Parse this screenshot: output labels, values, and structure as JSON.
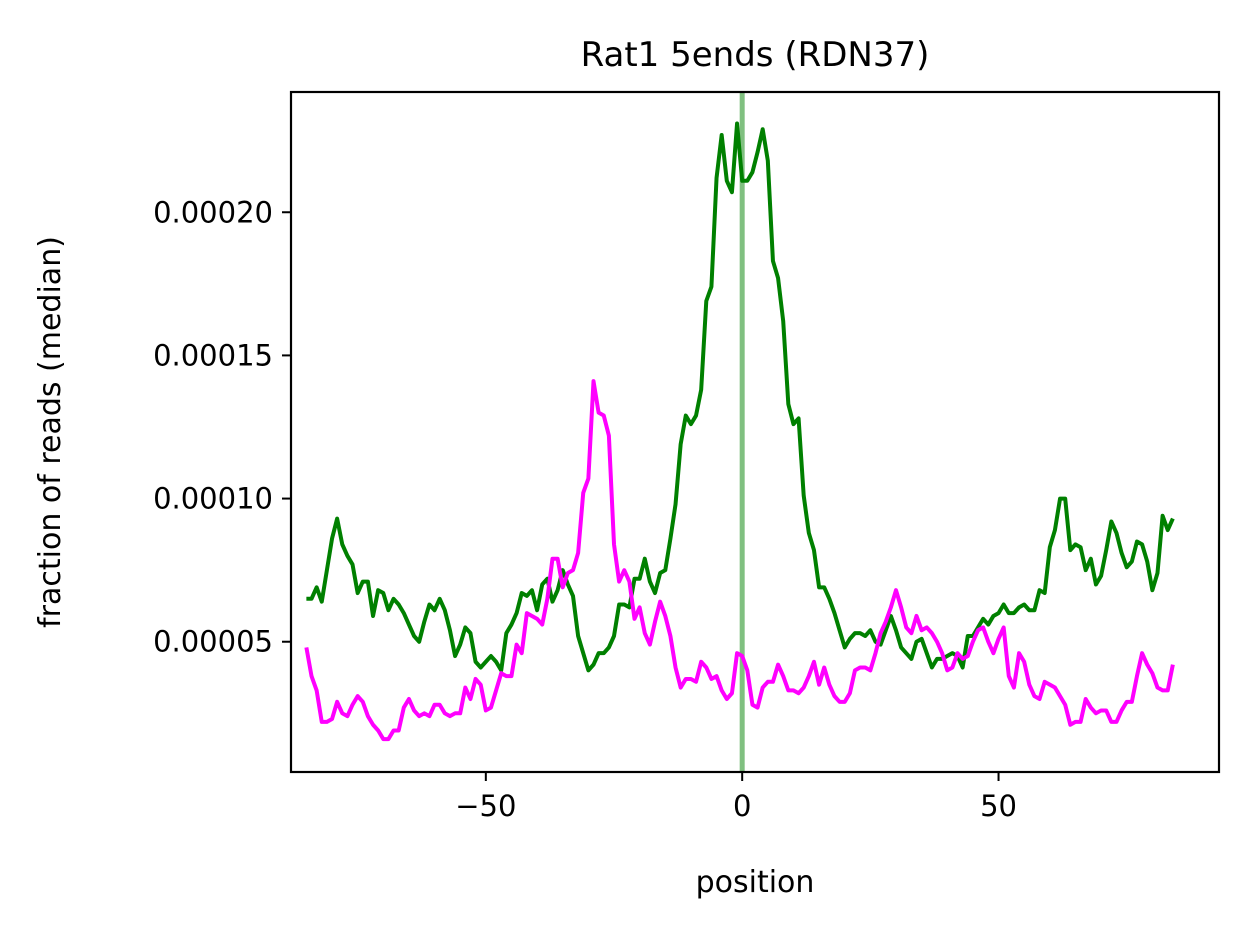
{
  "chart_data": {
    "type": "line",
    "title": "Rat1 5ends (RDN37)",
    "xlabel": "position",
    "ylabel": "fraction of reads (median)",
    "xlim": [
      -88,
      93
    ],
    "ylim": [
      4.5e-06,
      0.000242
    ],
    "xticks": [
      -50,
      0,
      50
    ],
    "xtick_labels": [
      "−50",
      "0",
      "50"
    ],
    "yticks": [
      5e-05,
      0.0001,
      0.00015,
      0.0002
    ],
    "ytick_labels": [
      "0.00005",
      "0.00010",
      "0.00015",
      "0.00020"
    ],
    "grid": false,
    "legend": "none",
    "vline": {
      "x": 0,
      "color": "#80c080"
    },
    "x_start": -85,
    "x_step": 1,
    "series": [
      {
        "color": "#008000",
        "values": [
          6.5e-05,
          6.5e-05,
          6.9e-05,
          6.4e-05,
          7.5e-05,
          8.6e-05,
          9.3e-05,
          8.4e-05,
          8e-05,
          7.7e-05,
          6.7e-05,
          7.1e-05,
          7.1e-05,
          5.9e-05,
          6.8e-05,
          6.7e-05,
          6.1e-05,
          6.5e-05,
          6.3e-05,
          6e-05,
          5.6e-05,
          5.2e-05,
          5e-05,
          5.7e-05,
          6.3e-05,
          6.1e-05,
          6.5e-05,
          6.1e-05,
          5.4e-05,
          4.5e-05,
          4.9e-05,
          5.5e-05,
          5.3e-05,
          4.3e-05,
          4.1e-05,
          4.3e-05,
          4.5e-05,
          4.3e-05,
          4e-05,
          5.3e-05,
          5.6e-05,
          6e-05,
          6.7e-05,
          6.6e-05,
          6.8e-05,
          6.1e-05,
          7e-05,
          7.2e-05,
          6.4e-05,
          6.8e-05,
          7.5e-05,
          7e-05,
          6.6e-05,
          5.2e-05,
          4.6e-05,
          4e-05,
          4.2e-05,
          4.6e-05,
          4.6e-05,
          4.8e-05,
          5.2e-05,
          6.3e-05,
          6.3e-05,
          6.2e-05,
          7.2e-05,
          7.2e-05,
          7.9e-05,
          7.1e-05,
          6.7e-05,
          7.4e-05,
          7.5e-05,
          8.6e-05,
          9.8e-05,
          0.000119,
          0.000129,
          0.000126,
          0.000129,
          0.000138,
          0.000169,
          0.000174,
          0.000212,
          0.000227,
          0.000211,
          0.000207,
          0.000231,
          0.000211,
          0.000211,
          0.000214,
          0.000221,
          0.000229,
          0.000218,
          0.000183,
          0.000177,
          0.000162,
          0.000133,
          0.000126,
          0.000128,
          0.000101,
          8.8e-05,
          8.2e-05,
          6.9e-05,
          6.9e-05,
          6.5e-05,
          6e-05,
          5.4e-05,
          4.8e-05,
          5.1e-05,
          5.3e-05,
          5.3e-05,
          5.2e-05,
          5.4e-05,
          5e-05,
          4.9e-05,
          5.4e-05,
          5.9e-05,
          5.4e-05,
          4.8e-05,
          4.6e-05,
          4.4e-05,
          5e-05,
          5.1e-05,
          4.6e-05,
          4.1e-05,
          4.4e-05,
          4.4e-05,
          4.5e-05,
          4.6e-05,
          4.5e-05,
          4.1e-05,
          5.2e-05,
          5.2e-05,
          5.5e-05,
          5.8e-05,
          5.6e-05,
          5.9e-05,
          6e-05,
          6.3e-05,
          6e-05,
          6e-05,
          6.2e-05,
          6.3e-05,
          6.1e-05,
          6.1e-05,
          6.8e-05,
          6.7e-05,
          8.3e-05,
          8.9e-05,
          0.0001,
          0.0001,
          8.2e-05,
          8.4e-05,
          8.3e-05,
          7.5e-05,
          7.9e-05,
          7e-05,
          7.3e-05,
          8.2e-05,
          9.2e-05,
          8.8e-05,
          8.1e-05,
          7.6e-05,
          7.8e-05,
          8.5e-05,
          8.4e-05,
          7.8e-05,
          6.8e-05,
          7.4e-05,
          9.4e-05,
          8.9e-05,
          9.3e-05
        ]
      },
      {
        "color": "#ff00ff",
        "values": [
          4.8e-05,
          3.8e-05,
          3.3e-05,
          2.2e-05,
          2.2e-05,
          2.3e-05,
          2.9e-05,
          2.5e-05,
          2.4e-05,
          2.8e-05,
          3.1e-05,
          2.9e-05,
          2.4e-05,
          2.1e-05,
          1.9e-05,
          1.6e-05,
          1.6e-05,
          1.9e-05,
          1.9e-05,
          2.7e-05,
          3e-05,
          2.6e-05,
          2.4e-05,
          2.5e-05,
          2.4e-05,
          2.8e-05,
          2.8e-05,
          2.5e-05,
          2.4e-05,
          2.5e-05,
          2.5e-05,
          3.4e-05,
          3e-05,
          3.7e-05,
          3.5e-05,
          2.6e-05,
          2.7e-05,
          3.3e-05,
          3.9e-05,
          3.8e-05,
          3.8e-05,
          4.9e-05,
          4.6e-05,
          6e-05,
          5.9e-05,
          5.8e-05,
          5.6e-05,
          6.5e-05,
          7.9e-05,
          7.9e-05,
          6.9e-05,
          7.4e-05,
          7.5e-05,
          8.1e-05,
          0.000102,
          0.000107,
          0.000141,
          0.00013,
          0.000129,
          0.000122,
          8.4e-05,
          7.1e-05,
          7.5e-05,
          7.1e-05,
          5.8e-05,
          6.2e-05,
          5.3e-05,
          4.9e-05,
          5.7e-05,
          6.4e-05,
          5.9e-05,
          5.2e-05,
          4.1e-05,
          3.4e-05,
          3.7e-05,
          3.7e-05,
          3.6e-05,
          4.3e-05,
          4.1e-05,
          3.7e-05,
          3.8e-05,
          3.3e-05,
          3e-05,
          3.2e-05,
          4.6e-05,
          4.5e-05,
          4e-05,
          2.8e-05,
          2.7e-05,
          3.4e-05,
          3.6e-05,
          3.6e-05,
          4.2e-05,
          3.8e-05,
          3.3e-05,
          3.3e-05,
          3.2e-05,
          3.4e-05,
          3.8e-05,
          4.3e-05,
          3.5e-05,
          4.1e-05,
          3.5e-05,
          3.1e-05,
          2.9e-05,
          2.9e-05,
          3.2e-05,
          4e-05,
          4.1e-05,
          4.1e-05,
          4e-05,
          4.6e-05,
          5.3e-05,
          5.7e-05,
          6.2e-05,
          6.8e-05,
          6.2e-05,
          5.5e-05,
          5.3e-05,
          5.9e-05,
          5.4e-05,
          5.5e-05,
          5.3e-05,
          5e-05,
          4.6e-05,
          4e-05,
          4.1e-05,
          4.6e-05,
          4.4e-05,
          4.5e-05,
          5e-05,
          5.4e-05,
          5.5e-05,
          5e-05,
          4.6e-05,
          5.1e-05,
          5.5e-05,
          3.8e-05,
          3.4e-05,
          4.6e-05,
          4.3e-05,
          3.5e-05,
          3.1e-05,
          3e-05,
          3.6e-05,
          3.5e-05,
          3.4e-05,
          3.1e-05,
          2.8e-05,
          2.1e-05,
          2.2e-05,
          2.2e-05,
          3e-05,
          2.7e-05,
          2.5e-05,
          2.6e-05,
          2.6e-05,
          2.2e-05,
          2.2e-05,
          2.6e-05,
          2.9e-05,
          2.9e-05,
          3.8e-05,
          4.6e-05,
          4.2e-05,
          3.9e-05,
          3.4e-05,
          3.3e-05,
          3.3e-05,
          4.2e-05
        ]
      }
    ]
  }
}
